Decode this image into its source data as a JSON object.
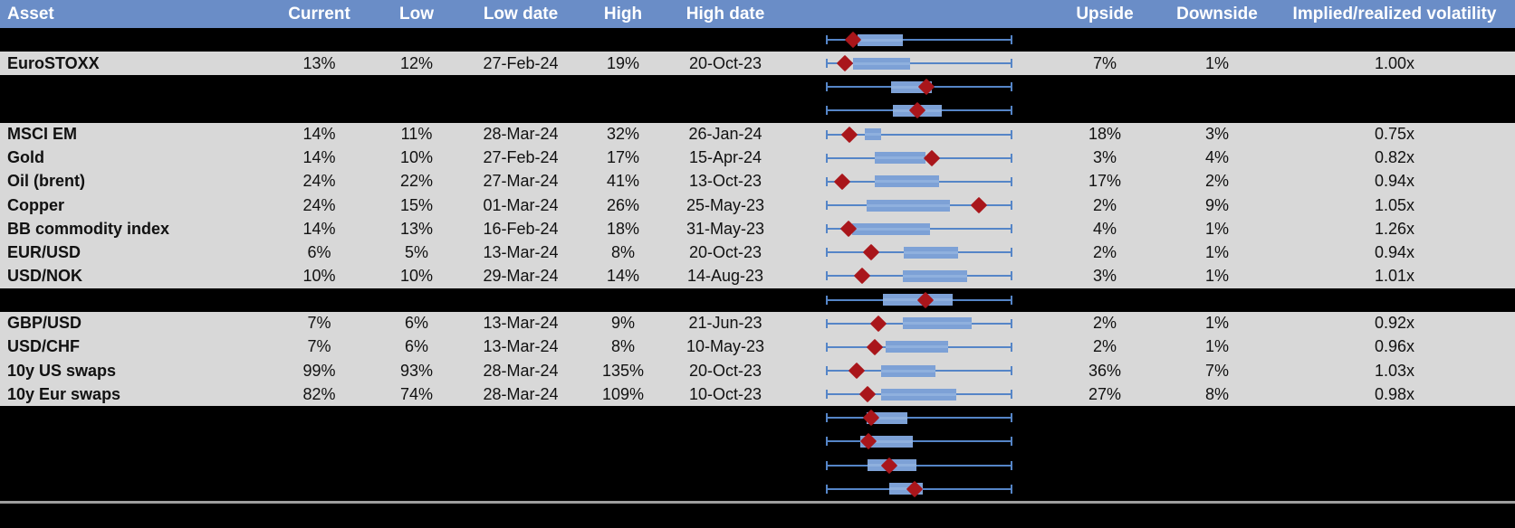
{
  "colors": {
    "header_bg": "#6A8DC7",
    "data_row_bg": "#D8D8D8",
    "hidden_row_bg": "#000000",
    "whisker": "#5585C7",
    "box_fill": "#7DA1D6",
    "marker": "#A9161B",
    "separator_line": "#9E9E9E",
    "header_text": "#FFFFFF",
    "body_text": "#111111"
  },
  "table": {
    "columns": [
      {
        "id": "asset",
        "label": "Asset"
      },
      {
        "id": "current",
        "label": "Current"
      },
      {
        "id": "low",
        "label": "Low"
      },
      {
        "id": "low_date",
        "label": "Low date"
      },
      {
        "id": "high",
        "label": "High"
      },
      {
        "id": "high_date",
        "label": "High date"
      },
      {
        "id": "chart",
        "label": ""
      },
      {
        "id": "upside",
        "label": "Upside"
      },
      {
        "id": "downside",
        "label": "Downside"
      },
      {
        "id": "implied_realized",
        "label": "Implied/realized volatility"
      }
    ],
    "rows": [
      {
        "type": "hidden",
        "boxplot": {
          "box_left_pct": 16.7,
          "box_right_pct": 41.2,
          "marker_pct": 14.2
        }
      },
      {
        "type": "data",
        "asset": "EuroSTOXX",
        "current": "13%",
        "low": "12%",
        "low_date": "27-Feb-24",
        "high": "19%",
        "high_date": "20-Oct-23",
        "upside": "7%",
        "downside": "1%",
        "implied_realized": "1.00x",
        "boxplot": {
          "box_left_pct": 14.2,
          "box_right_pct": 45.1,
          "marker_pct": 9.8
        }
      },
      {
        "type": "hidden",
        "boxplot": {
          "box_left_pct": 34.8,
          "box_right_pct": 56.9,
          "marker_pct": 53.9
        }
      },
      {
        "type": "hidden",
        "boxplot": {
          "box_left_pct": 35.8,
          "box_right_pct": 62.3,
          "marker_pct": 49.0
        }
      },
      {
        "type": "data",
        "asset": "MSCI EM",
        "current": "14%",
        "low": "11%",
        "low_date": "28-Mar-24",
        "high": "32%",
        "high_date": "26-Jan-24",
        "upside": "18%",
        "downside": "3%",
        "implied_realized": "0.75x",
        "boxplot": {
          "box_left_pct": 20.6,
          "box_right_pct": 29.4,
          "marker_pct": 12.3
        }
      },
      {
        "type": "data",
        "asset": "Gold",
        "current": "14%",
        "low": "10%",
        "low_date": "27-Feb-24",
        "high": "17%",
        "high_date": "15-Apr-24",
        "upside": "3%",
        "downside": "4%",
        "implied_realized": "0.82x",
        "boxplot": {
          "box_left_pct": 26.0,
          "box_right_pct": 53.4,
          "marker_pct": 56.9
        }
      },
      {
        "type": "data",
        "asset": "Oil (brent)",
        "current": "24%",
        "low": "22%",
        "low_date": "27-Mar-24",
        "high": "41%",
        "high_date": "13-Oct-23",
        "upside": "17%",
        "downside": "2%",
        "implied_realized": "0.94x",
        "boxplot": {
          "box_left_pct": 26.0,
          "box_right_pct": 60.8,
          "marker_pct": 8.3
        }
      },
      {
        "type": "data",
        "asset": "Copper",
        "current": "24%",
        "low": "15%",
        "low_date": "01-Mar-24",
        "high": "26%",
        "high_date": "25-May-23",
        "upside": "2%",
        "downside": "9%",
        "implied_realized": "1.05x",
        "boxplot": {
          "box_left_pct": 21.6,
          "box_right_pct": 66.7,
          "marker_pct": 82.4
        }
      },
      {
        "type": "data",
        "asset": "BB commodity index",
        "current": "14%",
        "low": "13%",
        "low_date": "16-Feb-24",
        "high": "18%",
        "high_date": "31-May-23",
        "upside": "4%",
        "downside": "1%",
        "implied_realized": "1.26x",
        "boxplot": {
          "box_left_pct": 13.7,
          "box_right_pct": 55.9,
          "marker_pct": 11.8
        }
      },
      {
        "type": "data",
        "asset": "EUR/USD",
        "current": "6%",
        "low": "5%",
        "low_date": "13-Mar-24",
        "high": "8%",
        "high_date": "20-Oct-23",
        "upside": "2%",
        "downside": "1%",
        "implied_realized": "0.94x",
        "boxplot": {
          "box_left_pct": 41.7,
          "box_right_pct": 71.1,
          "marker_pct": 24.0
        }
      },
      {
        "type": "data",
        "asset": "USD/NOK",
        "current": "10%",
        "low": "10%",
        "low_date": "29-Mar-24",
        "high": "14%",
        "high_date": "14-Aug-23",
        "upside": "3%",
        "downside": "1%",
        "implied_realized": "1.01x",
        "boxplot": {
          "box_left_pct": 41.2,
          "box_right_pct": 76.0,
          "marker_pct": 19.1
        }
      },
      {
        "type": "hidden",
        "boxplot": {
          "box_left_pct": 30.4,
          "box_right_pct": 68.1,
          "marker_pct": 53.4
        }
      },
      {
        "type": "data",
        "asset": "GBP/USD",
        "current": "7%",
        "low": "6%",
        "low_date": "13-Mar-24",
        "high": "9%",
        "high_date": "21-Jun-23",
        "upside": "2%",
        "downside": "1%",
        "implied_realized": "0.92x",
        "boxplot": {
          "box_left_pct": 41.2,
          "box_right_pct": 78.4,
          "marker_pct": 27.9
        }
      },
      {
        "type": "data",
        "asset": "USD/CHF",
        "current": "7%",
        "low": "6%",
        "low_date": "13-Mar-24",
        "high": "8%",
        "high_date": "10-May-23",
        "upside": "2%",
        "downside": "1%",
        "implied_realized": "0.96x",
        "boxplot": {
          "box_left_pct": 31.9,
          "box_right_pct": 65.7,
          "marker_pct": 26.0
        }
      },
      {
        "type": "data",
        "asset": "10y US swaps",
        "current": "99%",
        "low": "93%",
        "low_date": "28-Mar-24",
        "high": "135%",
        "high_date": "20-Oct-23",
        "upside": "36%",
        "downside": "7%",
        "implied_realized": "1.03x",
        "boxplot": {
          "box_left_pct": 29.4,
          "box_right_pct": 58.8,
          "marker_pct": 16.2
        }
      },
      {
        "type": "data",
        "asset": "10y Eur swaps",
        "current": "82%",
        "low": "74%",
        "low_date": "28-Mar-24",
        "high": "109%",
        "high_date": "10-Oct-23",
        "upside": "27%",
        "downside": "8%",
        "implied_realized": "0.98x",
        "boxplot": {
          "box_left_pct": 29.4,
          "box_right_pct": 70.1,
          "marker_pct": 22.1
        }
      },
      {
        "type": "hidden",
        "boxplot": {
          "box_left_pct": 21.6,
          "box_right_pct": 43.6,
          "marker_pct": 24.0
        }
      },
      {
        "type": "hidden",
        "boxplot": {
          "box_left_pct": 18.1,
          "box_right_pct": 46.6,
          "marker_pct": 22.5
        }
      },
      {
        "type": "hidden",
        "boxplot": {
          "box_left_pct": 22.1,
          "box_right_pct": 48.5,
          "marker_pct": 33.8
        }
      },
      {
        "type": "hidden",
        "boxplot": {
          "box_left_pct": 33.8,
          "box_right_pct": 52.0,
          "marker_pct": 47.5
        }
      }
    ]
  }
}
